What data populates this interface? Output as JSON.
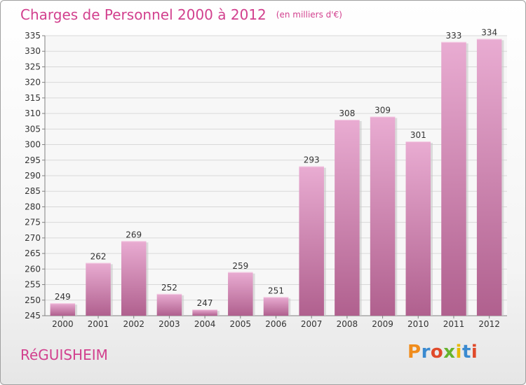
{
  "header": {
    "title": "Charges de Personnel 2000 à 2012",
    "subtitle": "(en milliers d'€)"
  },
  "footer": {
    "commune": "RéGUISHEIM",
    "logo": "Proxiti"
  },
  "colors": {
    "title": "#d2408e",
    "bar_top": "#e8a8d0",
    "bar_bottom": "#b05c8c"
  },
  "chart_data": {
    "type": "bar",
    "categories": [
      "2000",
      "2001",
      "2002",
      "2003",
      "2004",
      "2005",
      "2006",
      "2007",
      "2008",
      "2009",
      "2010",
      "2011",
      "2012"
    ],
    "values": [
      249,
      262,
      269,
      252,
      247,
      259,
      251,
      293,
      308,
      309,
      301,
      333,
      334
    ],
    "ylim": [
      245,
      335
    ],
    "yticks": [
      245,
      250,
      255,
      260,
      265,
      270,
      275,
      280,
      285,
      290,
      295,
      300,
      305,
      310,
      315,
      320,
      325,
      330,
      335
    ],
    "grid": true,
    "title": "Charges de Personnel 2000 à 2012",
    "xlabel": "",
    "ylabel": ""
  }
}
